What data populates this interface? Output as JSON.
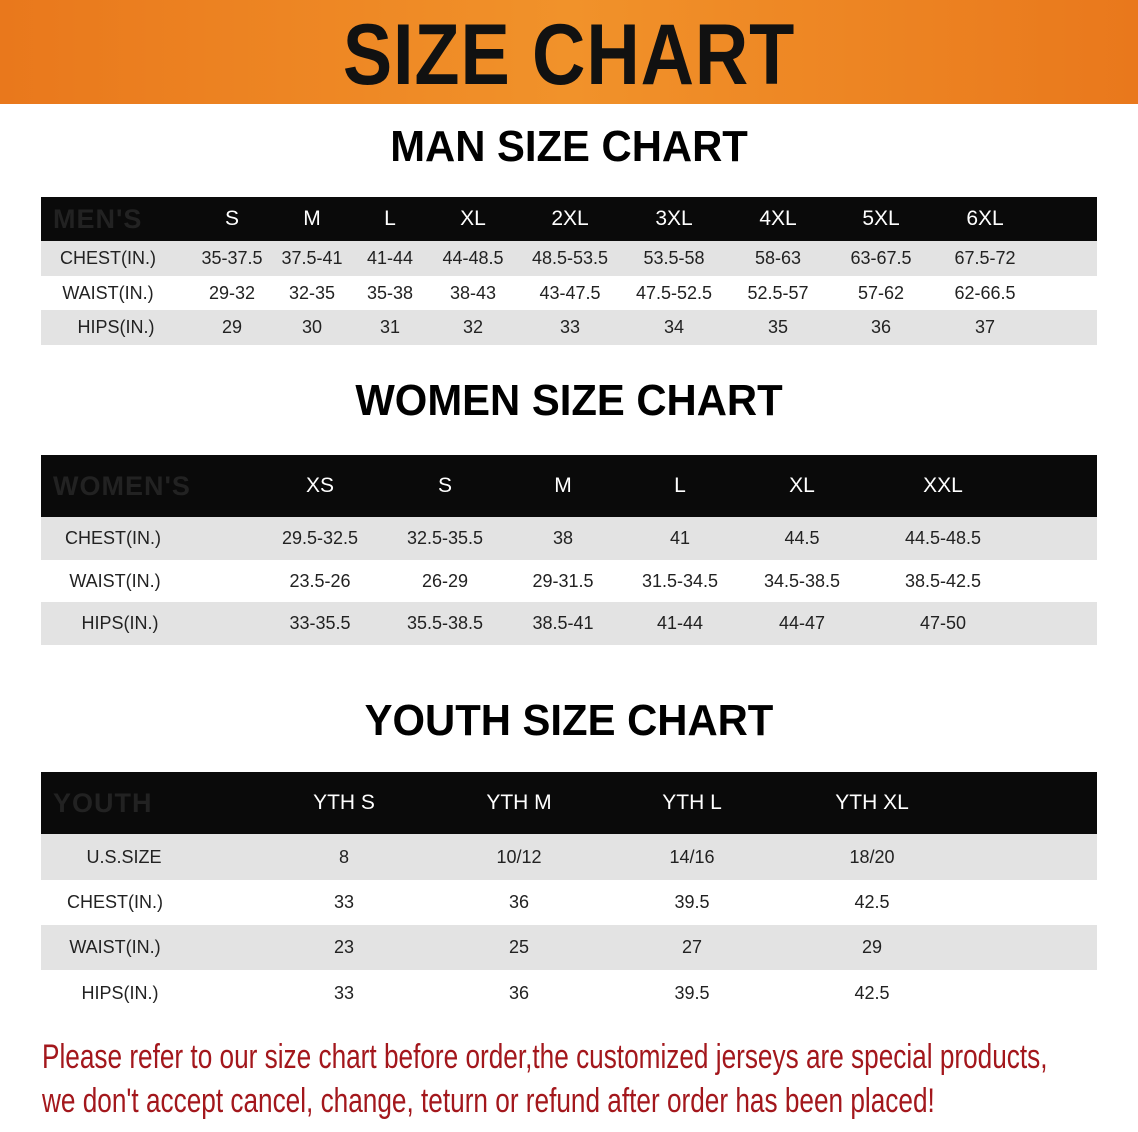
{
  "banner": {
    "title": "SIZE CHART",
    "color": "#ee8422"
  },
  "men": {
    "title": "MAN SIZE CHART",
    "header": [
      "MEN'S",
      "S",
      "M",
      "L",
      "XL",
      "2XL",
      "3XL",
      "4XL",
      "5XL",
      "6XL"
    ],
    "rows": [
      [
        "CHEST(IN.)",
        "35-37.5",
        "37.5-41",
        "41-44",
        "44-48.5",
        "48.5-53.5",
        "53.5-58",
        "58-63",
        "63-67.5",
        "67.5-72"
      ],
      [
        "WAIST(IN.)",
        "29-32",
        "32-35",
        "35-38",
        "38-43",
        "43-47.5",
        "47.5-52.5",
        "52.5-57",
        "57-62",
        "62-66.5"
      ],
      [
        "HIPS(IN.)",
        "29",
        "30",
        "31",
        "32",
        "33",
        "34",
        "35",
        "36",
        "37"
      ]
    ]
  },
  "women": {
    "title": "WOMEN SIZE CHART",
    "header": [
      "WOMEN'S",
      "XS",
      "S",
      "M",
      "L",
      "XL",
      "XXL"
    ],
    "rows": [
      [
        "CHEST(IN.)",
        "29.5-32.5",
        "32.5-35.5",
        "38",
        "41",
        "44.5",
        "44.5-48.5"
      ],
      [
        "WAIST(IN.)",
        "23.5-26",
        "26-29",
        "29-31.5",
        "31.5-34.5",
        "34.5-38.5",
        "38.5-42.5"
      ],
      [
        "HIPS(IN.)",
        "33-35.5",
        "35.5-38.5",
        "38.5-41",
        "41-44",
        "44-47",
        "47-50"
      ]
    ]
  },
  "youth": {
    "title": "YOUTH SIZE CHART",
    "header": [
      "YOUTH",
      "YTH S",
      "YTH M",
      "YTH L",
      "YTH XL"
    ],
    "rows": [
      [
        "U.S.SIZE",
        "8",
        "10/12",
        "14/16",
        "18/20"
      ],
      [
        "CHEST(IN.)",
        "33",
        "36",
        "39.5",
        "42.5"
      ],
      [
        "WAIST(IN.)",
        "23",
        "25",
        "27",
        "29"
      ],
      [
        "HIPS(IN.)",
        "33",
        "36",
        "39.5",
        "42.5"
      ]
    ]
  },
  "note": {
    "line1": "Please refer to our size chart before order,the customized jerseys are special products,",
    "line2": "we don't accept cancel, change, teturn or refund after order has been placed!",
    "color": "#a3171c"
  }
}
